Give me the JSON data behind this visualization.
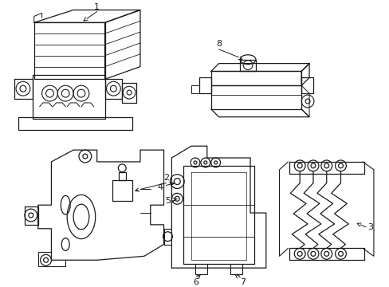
{
  "background_color": "#ffffff",
  "line_color": "#1a1a1a",
  "line_width": 0.9,
  "label_fontsize": 8,
  "fig_width": 4.89,
  "fig_height": 3.6,
  "dpi": 100
}
